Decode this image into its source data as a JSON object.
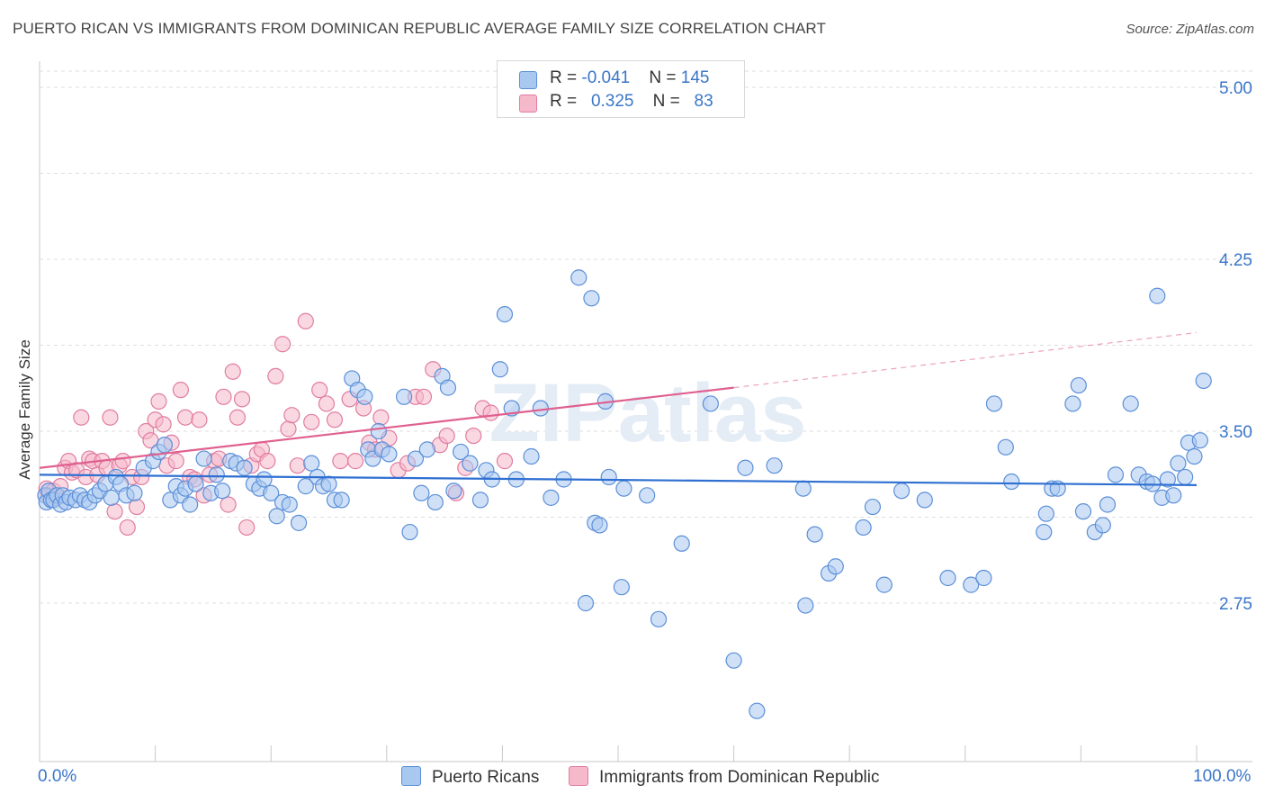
{
  "title": "PUERTO RICAN VS IMMIGRANTS FROM DOMINICAN REPUBLIC AVERAGE FAMILY SIZE CORRELATION CHART",
  "source": "Source: ZipAtlas.com",
  "watermark": "ZIPatlas",
  "legend": {
    "rows": [
      {
        "r_label": "R = ",
        "r_value": "-0.041",
        "n_label": "N = ",
        "n_value": "145",
        "color": "#a9c8f0",
        "border": "#5b8fd8"
      },
      {
        "r_label": "R = ",
        "r_value": "0.325",
        "n_label": "N = ",
        "n_value": "83",
        "color": "#f6b8cb",
        "border": "#e07da0"
      }
    ]
  },
  "bottom_legend": [
    {
      "label": "Puerto Ricans",
      "color": "#a9c8f0",
      "border": "#5b8fd8"
    },
    {
      "label": "Immigrants from Dominican Republic",
      "color": "#f6b8cb",
      "border": "#e07da0"
    }
  ],
  "chart_data": {
    "type": "scatter",
    "title": "PUERTO RICAN VS IMMIGRANTS FROM DOMINICAN REPUBLIC AVERAGE FAMILY SIZE CORRELATION CHART",
    "xlabel": "",
    "ylabel": "Average Family Size",
    "xlim": [
      0,
      100
    ],
    "ylim": [
      2.0,
      5.1
    ],
    "x_tick_labels": [
      "0.0%",
      "100.0%"
    ],
    "y_ticks": [
      2.75,
      3.5,
      4.25,
      5.0
    ],
    "y_tick_labels": [
      "2.75",
      "3.50",
      "4.25",
      "5.00"
    ],
    "grid": true,
    "series": [
      {
        "name": "Puerto Ricans",
        "color": "#5b8fd8",
        "fill": "#a9c8f0",
        "trend": {
          "x": [
            0,
            100
          ],
          "y": [
            3.31,
            3.265
          ],
          "color": "#2e6fd1"
        },
        "points": [
          [
            0.5,
            3.22
          ],
          [
            0.6,
            3.19
          ],
          [
            0.8,
            3.24
          ],
          [
            1.0,
            3.2
          ],
          [
            1.2,
            3.2
          ],
          [
            1.5,
            3.22
          ],
          [
            1.8,
            3.18
          ],
          [
            2.0,
            3.22
          ],
          [
            2.3,
            3.19
          ],
          [
            2.6,
            3.21
          ],
          [
            3.1,
            3.2
          ],
          [
            3.5,
            3.22
          ],
          [
            3.9,
            3.2
          ],
          [
            4.3,
            3.19
          ],
          [
            4.8,
            3.22
          ],
          [
            5.2,
            3.24
          ],
          [
            5.7,
            3.27
          ],
          [
            6.2,
            3.21
          ],
          [
            6.6,
            3.3
          ],
          [
            7.0,
            3.27
          ],
          [
            7.5,
            3.22
          ],
          [
            8.2,
            3.23
          ],
          [
            9.0,
            3.34
          ],
          [
            9.8,
            3.37
          ],
          [
            10.3,
            3.41
          ],
          [
            10.8,
            3.44
          ],
          [
            11.3,
            3.2
          ],
          [
            11.8,
            3.26
          ],
          [
            12.2,
            3.22
          ],
          [
            12.6,
            3.25
          ],
          [
            13.0,
            3.18
          ],
          [
            13.5,
            3.27
          ],
          [
            14.2,
            3.38
          ],
          [
            14.8,
            3.23
          ],
          [
            15.3,
            3.31
          ],
          [
            15.8,
            3.24
          ],
          [
            16.5,
            3.37
          ],
          [
            17.0,
            3.36
          ],
          [
            17.7,
            3.34
          ],
          [
            18.5,
            3.27
          ],
          [
            19.0,
            3.25
          ],
          [
            19.4,
            3.29
          ],
          [
            20.0,
            3.23
          ],
          [
            20.5,
            3.13
          ],
          [
            21.0,
            3.19
          ],
          [
            21.6,
            3.18
          ],
          [
            22.4,
            3.1
          ],
          [
            23.0,
            3.26
          ],
          [
            23.5,
            3.36
          ],
          [
            24.0,
            3.3
          ],
          [
            24.5,
            3.26
          ],
          [
            25.0,
            3.27
          ],
          [
            25.5,
            3.2
          ],
          [
            26.1,
            3.2
          ],
          [
            27.0,
            3.73
          ],
          [
            27.5,
            3.68
          ],
          [
            28.1,
            3.65
          ],
          [
            28.4,
            3.42
          ],
          [
            28.8,
            3.38
          ],
          [
            29.3,
            3.5
          ],
          [
            29.6,
            3.42
          ],
          [
            30.2,
            3.4
          ],
          [
            31.5,
            3.65
          ],
          [
            32.0,
            3.06
          ],
          [
            32.5,
            3.38
          ],
          [
            33.0,
            3.23
          ],
          [
            33.5,
            3.42
          ],
          [
            34.2,
            3.19
          ],
          [
            34.8,
            3.74
          ],
          [
            35.3,
            3.69
          ],
          [
            35.8,
            3.24
          ],
          [
            36.4,
            3.41
          ],
          [
            37.2,
            3.36
          ],
          [
            38.1,
            3.2
          ],
          [
            38.6,
            3.33
          ],
          [
            39.1,
            3.29
          ],
          [
            39.8,
            3.77
          ],
          [
            40.2,
            4.01
          ],
          [
            40.8,
            3.6
          ],
          [
            41.2,
            3.29
          ],
          [
            42.5,
            3.39
          ],
          [
            43.3,
            3.6
          ],
          [
            44.2,
            3.21
          ],
          [
            45.3,
            3.29
          ],
          [
            46.6,
            4.17
          ],
          [
            47.2,
            2.75
          ],
          [
            47.7,
            4.08
          ],
          [
            48.0,
            3.1
          ],
          [
            48.4,
            3.09
          ],
          [
            48.9,
            3.63
          ],
          [
            49.2,
            3.3
          ],
          [
            50.3,
            2.82
          ],
          [
            50.5,
            3.25
          ],
          [
            52.5,
            3.22
          ],
          [
            53.5,
            2.68
          ],
          [
            55.5,
            3.01
          ],
          [
            58.0,
            3.62
          ],
          [
            60.0,
            2.5
          ],
          [
            61.0,
            3.34
          ],
          [
            62.0,
            2.28
          ],
          [
            63.5,
            3.35
          ],
          [
            66.0,
            3.25
          ],
          [
            66.2,
            2.74
          ],
          [
            67.0,
            3.05
          ],
          [
            68.2,
            2.88
          ],
          [
            68.8,
            2.91
          ],
          [
            71.2,
            3.08
          ],
          [
            72.0,
            3.17
          ],
          [
            73.0,
            2.83
          ],
          [
            74.5,
            3.24
          ],
          [
            76.5,
            3.2
          ],
          [
            78.5,
            2.86
          ],
          [
            80.5,
            2.83
          ],
          [
            81.6,
            2.86
          ],
          [
            82.5,
            3.62
          ],
          [
            83.5,
            3.43
          ],
          [
            84.0,
            3.28
          ],
          [
            86.8,
            3.06
          ],
          [
            87.0,
            3.14
          ],
          [
            87.5,
            3.25
          ],
          [
            88.0,
            3.25
          ],
          [
            89.3,
            3.62
          ],
          [
            89.8,
            3.7
          ],
          [
            90.2,
            3.15
          ],
          [
            91.2,
            3.06
          ],
          [
            91.9,
            3.09
          ],
          [
            92.3,
            3.18
          ],
          [
            93.0,
            3.31
          ],
          [
            94.3,
            3.62
          ],
          [
            95.0,
            3.31
          ],
          [
            95.7,
            3.28
          ],
          [
            96.2,
            3.27
          ],
          [
            96.6,
            4.09
          ],
          [
            97.0,
            3.21
          ],
          [
            97.5,
            3.29
          ],
          [
            98.0,
            3.22
          ],
          [
            98.4,
            3.36
          ],
          [
            99.0,
            3.3
          ],
          [
            99.3,
            3.45
          ],
          [
            99.8,
            3.39
          ],
          [
            100.3,
            3.46
          ],
          [
            100.6,
            3.72
          ]
        ]
      },
      {
        "name": "Immigrants from Dominican Republic",
        "color": "#e07da0",
        "fill": "#f6b8cb",
        "trend": {
          "x": [
            0,
            60
          ],
          "y": [
            3.34,
            3.69
          ],
          "color": "#e0608f"
        },
        "trend_ext": {
          "x": [
            60,
            100
          ],
          "y": [
            3.69,
            3.93
          ]
        },
        "points": [
          [
            0.6,
            3.25
          ],
          [
            0.8,
            3.22
          ],
          [
            1.0,
            3.2
          ],
          [
            1.2,
            3.24
          ],
          [
            1.5,
            3.21
          ],
          [
            1.8,
            3.26
          ],
          [
            2.2,
            3.34
          ],
          [
            2.5,
            3.37
          ],
          [
            2.8,
            3.32
          ],
          [
            3.2,
            3.33
          ],
          [
            3.6,
            3.56
          ],
          [
            4.0,
            3.3
          ],
          [
            4.3,
            3.38
          ],
          [
            4.6,
            3.37
          ],
          [
            5.0,
            3.31
          ],
          [
            5.4,
            3.37
          ],
          [
            5.8,
            3.34
          ],
          [
            6.1,
            3.56
          ],
          [
            6.5,
            3.15
          ],
          [
            6.9,
            3.35
          ],
          [
            7.2,
            3.37
          ],
          [
            7.6,
            3.08
          ],
          [
            8.0,
            3.3
          ],
          [
            8.4,
            3.17
          ],
          [
            8.8,
            3.3
          ],
          [
            9.2,
            3.5
          ],
          [
            9.6,
            3.46
          ],
          [
            10.0,
            3.55
          ],
          [
            10.3,
            3.63
          ],
          [
            10.7,
            3.53
          ],
          [
            11.0,
            3.35
          ],
          [
            11.4,
            3.45
          ],
          [
            11.8,
            3.37
          ],
          [
            12.2,
            3.68
          ],
          [
            12.6,
            3.56
          ],
          [
            13.0,
            3.3
          ],
          [
            13.4,
            3.29
          ],
          [
            13.8,
            3.55
          ],
          [
            14.2,
            3.22
          ],
          [
            14.7,
            3.31
          ],
          [
            15.1,
            3.37
          ],
          [
            15.5,
            3.38
          ],
          [
            15.9,
            3.65
          ],
          [
            16.3,
            3.18
          ],
          [
            16.7,
            3.76
          ],
          [
            17.1,
            3.56
          ],
          [
            17.5,
            3.64
          ],
          [
            17.9,
            3.08
          ],
          [
            18.3,
            3.35
          ],
          [
            18.8,
            3.4
          ],
          [
            19.2,
            3.42
          ],
          [
            19.7,
            3.37
          ],
          [
            20.4,
            3.74
          ],
          [
            21.0,
            3.88
          ],
          [
            21.5,
            3.51
          ],
          [
            21.8,
            3.57
          ],
          [
            22.3,
            3.35
          ],
          [
            23.0,
            3.98
          ],
          [
            23.5,
            3.54
          ],
          [
            24.2,
            3.68
          ],
          [
            24.8,
            3.62
          ],
          [
            25.5,
            3.55
          ],
          [
            26.0,
            3.37
          ],
          [
            26.8,
            3.64
          ],
          [
            27.3,
            3.37
          ],
          [
            28.0,
            3.6
          ],
          [
            28.5,
            3.45
          ],
          [
            29.0,
            3.42
          ],
          [
            29.5,
            3.56
          ],
          [
            30.2,
            3.47
          ],
          [
            31.0,
            3.33
          ],
          [
            31.8,
            3.36
          ],
          [
            32.5,
            3.65
          ],
          [
            33.2,
            3.65
          ],
          [
            34.0,
            3.77
          ],
          [
            34.6,
            3.44
          ],
          [
            35.2,
            3.48
          ],
          [
            36.0,
            3.23
          ],
          [
            36.8,
            3.34
          ],
          [
            37.5,
            3.48
          ],
          [
            38.3,
            3.6
          ],
          [
            39.0,
            3.58
          ],
          [
            40.2,
            3.37
          ]
        ]
      }
    ]
  }
}
